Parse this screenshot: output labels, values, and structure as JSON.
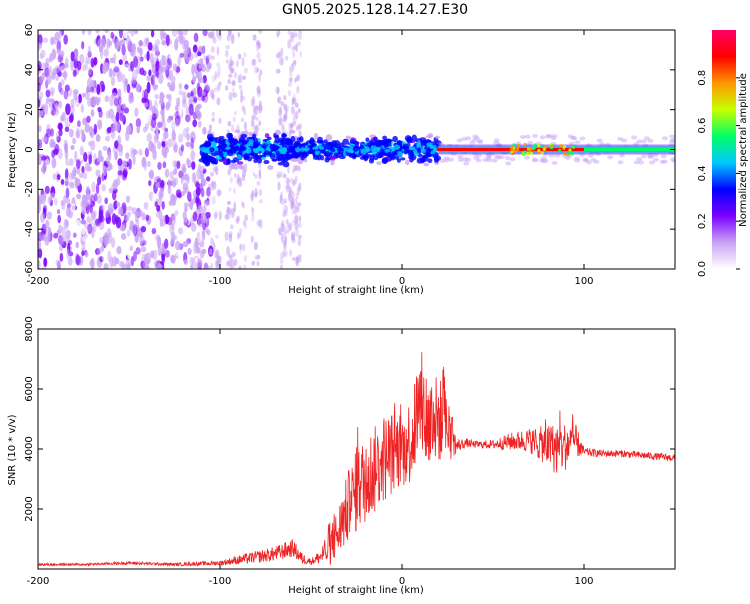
{
  "title": "GN05.2025.128.14.27.E30",
  "chart_data": [
    {
      "type": "heatmap",
      "title": "GN05.2025.128.14.27.E30",
      "xlabel": "Height of straight line (km)",
      "ylabel": "Frequency (Hz)",
      "xlim": [
        -200,
        150
      ],
      "ylim": [
        -60,
        60
      ],
      "xticks": [
        -200,
        -100,
        0,
        100
      ],
      "yticks": [
        -60,
        -40,
        -20,
        0,
        20,
        40,
        60
      ],
      "colorbar": {
        "label": "Normalized spectral amplitude",
        "range": [
          0,
          1
        ],
        "ticks": [
          "0.0",
          "0.2",
          "0.4",
          "0.6",
          "0.8"
        ],
        "colormap": [
          "#ffffff",
          "#c9a3f5",
          "#7a00ff",
          "#0000ff",
          "#00c8ff",
          "#00ff64",
          "#c8ff00",
          "#ff9600",
          "#ff0000",
          "#ff0064"
        ]
      },
      "regions": [
        {
          "name": "broadband noise",
          "x": [
            -200,
            -105
          ],
          "freq_range": [
            -60,
            60
          ],
          "amplitude": 0.15
        },
        {
          "name": "scattered columns",
          "x": [
            -105,
            -55
          ],
          "freq_range": [
            -60,
            60
          ],
          "amplitude": 0.05
        },
        {
          "name": "main signal band",
          "x": [
            -110,
            20
          ],
          "freq_range": [
            -12,
            12
          ],
          "amplitude": 0.35
        },
        {
          "name": "carrier line",
          "x": [
            20,
            150
          ],
          "freq_range": [
            -2,
            2
          ],
          "amplitude": 0.95
        }
      ]
    },
    {
      "type": "line",
      "xlabel": "Height of straight line (km)",
      "ylabel": "SNR (10 * v/v)",
      "xlim": [
        -200,
        150
      ],
      "ylim": [
        0,
        8000
      ],
      "xticks": [
        -200,
        -100,
        0,
        100
      ],
      "yticks": [
        2000,
        4000,
        6000,
        8000
      ],
      "line_color": "#ee2222",
      "x": [
        -200,
        -175,
        -150,
        -125,
        -100,
        -90,
        -80,
        -70,
        -60,
        -55,
        -50,
        -45,
        -40,
        -35,
        -30,
        -25,
        -20,
        -15,
        -10,
        -5,
        0,
        5,
        10,
        15,
        20,
        25,
        30,
        35,
        40,
        50,
        60,
        70,
        80,
        85,
        90,
        95,
        100,
        110,
        120,
        130,
        140,
        150
      ],
      "y": [
        150,
        150,
        200,
        150,
        200,
        300,
        400,
        500,
        700,
        350,
        250,
        400,
        700,
        1200,
        2000,
        2600,
        3000,
        3300,
        3700,
        3900,
        4000,
        4300,
        5500,
        4800,
        5000,
        4700,
        4100,
        4200,
        4150,
        4150,
        4250,
        4300,
        4100,
        4000,
        4100,
        4300,
        3900,
        3850,
        3850,
        3800,
        3750,
        3700
      ],
      "y_spread": [
        40,
        40,
        50,
        50,
        80,
        150,
        200,
        250,
        300,
        200,
        100,
        250,
        600,
        900,
        1200,
        1400,
        1500,
        1500,
        1500,
        1400,
        1300,
        1500,
        1900,
        1700,
        1500,
        1200,
        250,
        150,
        120,
        150,
        300,
        400,
        700,
        900,
        800,
        600,
        150,
        120,
        120,
        120,
        120,
        120
      ]
    }
  ]
}
